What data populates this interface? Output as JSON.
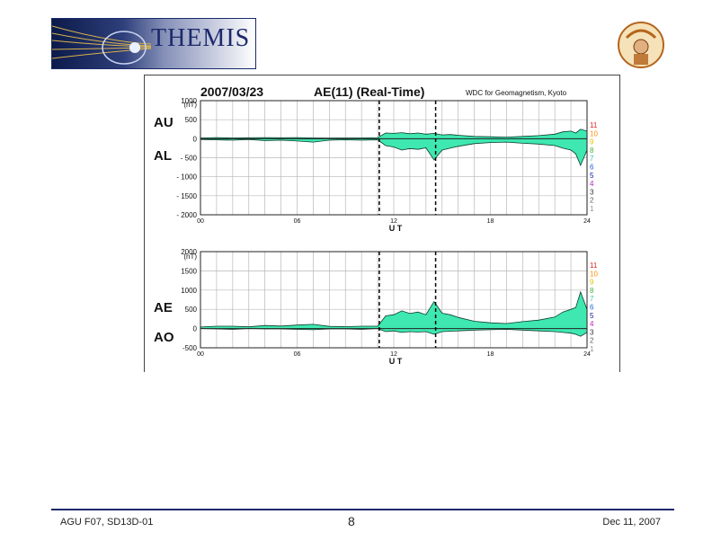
{
  "logo": {
    "title": "THEMIS"
  },
  "footer": {
    "left": "AGU F07, SD13D-01",
    "center": "8",
    "right": "Dec 11, 2007"
  },
  "colors": {
    "fill": "#3ee8b0",
    "grid": "#b8b8b8",
    "logo_navy": "#1c2a6b"
  },
  "chart_data": {
    "type": "area",
    "date": "2007/03/23",
    "title": "AE(11) (Real-Time)",
    "source": "WDC for Geomagnetism, Kyoto",
    "station_count_labels": [
      "11",
      "10",
      "9",
      "8",
      "7",
      "6",
      "5",
      "4",
      "3",
      "2",
      "1"
    ],
    "station_count_colors": [
      "#e02020",
      "#ff8c00",
      "#e6c000",
      "#4caf3a",
      "#2ec4b6",
      "#2060e0",
      "#1010a0",
      "#c020c0",
      "#303030",
      "#606060",
      "#909090"
    ],
    "markers_ut": [
      11.1,
      14.6
    ],
    "panels": [
      {
        "id": "au-al",
        "unit_label": "(nT)",
        "series_labels": [
          "AU",
          "AL"
        ],
        "ylim": [
          -2000,
          1000
        ],
        "yticks": [
          1000,
          500,
          0,
          -500,
          -1000,
          -1500,
          -2000
        ],
        "ytick_labels": [
          "1000",
          "500",
          "0",
          "- 500",
          "- 1000",
          "- 1500",
          "- 2000"
        ],
        "xlabel": "U T",
        "xticks": [
          0,
          6,
          12,
          18,
          24
        ],
        "xtick_labels": [
          "00",
          "06",
          "12",
          "18",
          "24"
        ],
        "x": [
          0,
          1,
          2,
          3,
          4,
          5,
          6,
          7,
          8,
          9,
          10,
          11,
          11.5,
          12,
          12.5,
          13,
          13.5,
          14,
          14.5,
          15,
          15.5,
          16,
          17,
          18,
          19,
          20,
          21,
          22,
          22.5,
          23,
          23.3,
          23.6,
          24
        ],
        "upper": [
          20,
          30,
          20,
          25,
          30,
          25,
          30,
          20,
          15,
          20,
          20,
          30,
          150,
          140,
          160,
          130,
          150,
          120,
          140,
          100,
          110,
          90,
          60,
          50,
          40,
          60,
          80,
          120,
          180,
          200,
          150,
          250,
          200
        ],
        "lower": [
          -20,
          -30,
          -40,
          -20,
          -50,
          -40,
          -60,
          -90,
          -40,
          -30,
          -40,
          -30,
          -180,
          -220,
          -300,
          -260,
          -280,
          -240,
          -560,
          -300,
          -250,
          -200,
          -130,
          -100,
          -90,
          -120,
          -140,
          -180,
          -250,
          -300,
          -400,
          -700,
          -300
        ]
      },
      {
        "id": "ae-ao",
        "unit_label": "(nT)",
        "series_labels": [
          "AE",
          "AO"
        ],
        "ylim": [
          -500,
          2000
        ],
        "yticks": [
          2000,
          1500,
          1000,
          500,
          0,
          -500
        ],
        "ytick_labels": [
          "2000",
          "1500",
          "1000",
          "500",
          "0",
          "-500"
        ],
        "xlabel": "U T",
        "xticks": [
          0,
          6,
          12,
          18,
          24
        ],
        "xtick_labels": [
          "00",
          "06",
          "12",
          "18",
          "24"
        ],
        "x": [
          0,
          1,
          2,
          3,
          4,
          5,
          6,
          7,
          8,
          9,
          10,
          11,
          11.5,
          12,
          12.5,
          13,
          13.5,
          14,
          14.5,
          15,
          15.5,
          16,
          17,
          18,
          19,
          20,
          21,
          22,
          22.5,
          23,
          23.3,
          23.6,
          24
        ],
        "upper": [
          40,
          60,
          60,
          45,
          80,
          65,
          90,
          110,
          55,
          50,
          60,
          60,
          330,
          360,
          460,
          390,
          430,
          360,
          700,
          400,
          360,
          290,
          190,
          150,
          130,
          180,
          220,
          300,
          430,
          500,
          550,
          950,
          500
        ],
        "lower": [
          0,
          -10,
          -20,
          0,
          -10,
          -10,
          -20,
          -30,
          -10,
          -10,
          -20,
          0,
          -80,
          -60,
          -100,
          -80,
          -90,
          -80,
          -150,
          -80,
          -70,
          -60,
          -40,
          -30,
          -20,
          -40,
          -60,
          -80,
          -100,
          -120,
          -150,
          -200,
          -100
        ]
      }
    ]
  }
}
